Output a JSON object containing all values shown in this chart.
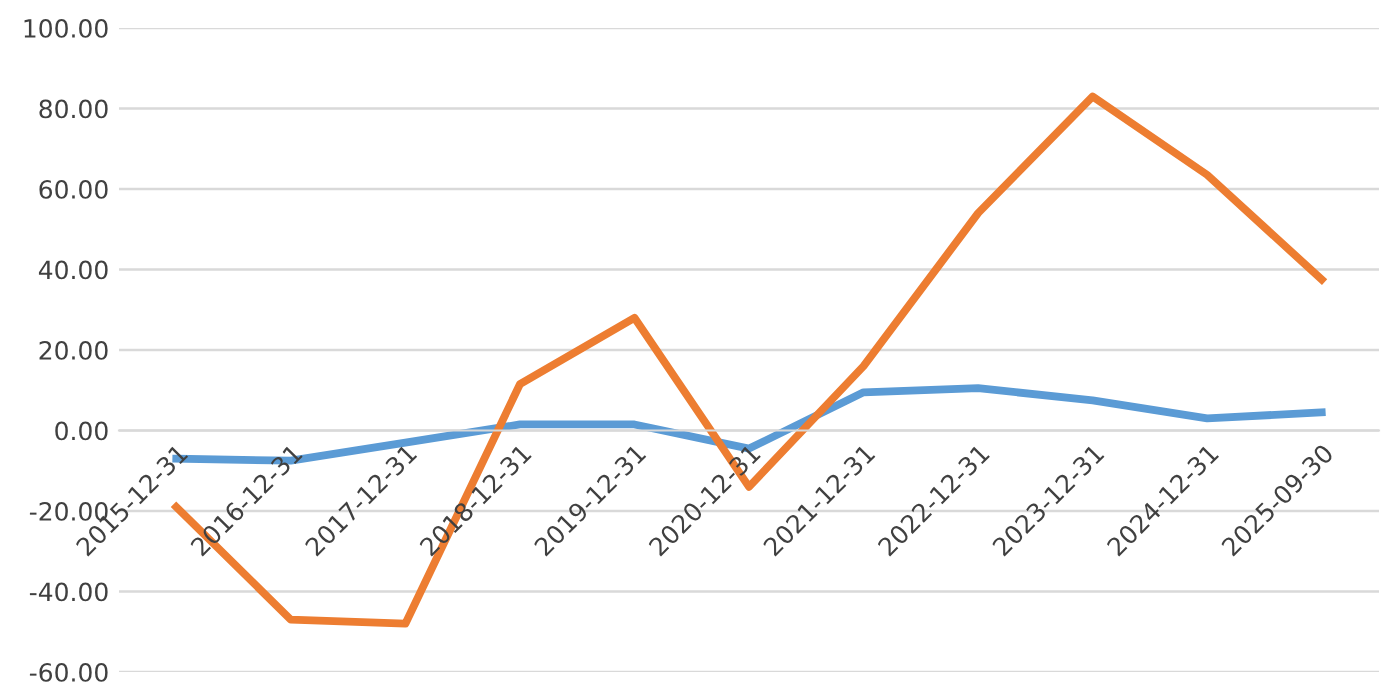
{
  "chart_data": {
    "type": "line",
    "categories": [
      "2015-12-31",
      "2016-12-31",
      "2017-12-31",
      "2018-12-31",
      "2019-12-31",
      "2020-12-31",
      "2021-12-31",
      "2022-12-31",
      "2023-12-31",
      "2024-12-31",
      "2025-09-30"
    ],
    "series": [
      {
        "color": "#5b9bd5",
        "values": [
          -7,
          -7.5,
          -3,
          1.5,
          1.5,
          -4.5,
          9.5,
          10.5,
          7.5,
          3,
          4.5
        ]
      },
      {
        "color": "#ed7d31",
        "values": [
          -19,
          -47,
          -48,
          11.5,
          28,
          -14,
          16,
          54,
          83,
          63.5,
          37.5
        ]
      }
    ],
    "ylim": [
      -60,
      100
    ],
    "yticks": [
      {
        "value": -60,
        "label": "-60.00"
      },
      {
        "value": -40,
        "label": "-40.00"
      },
      {
        "value": -20,
        "label": "-20.00"
      },
      {
        "value": 0,
        "label": "0.00"
      },
      {
        "value": 20,
        "label": "20.00"
      },
      {
        "value": 40,
        "label": "40.00"
      },
      {
        "value": 60,
        "label": "60.00"
      },
      {
        "value": 80,
        "label": "80.00"
      },
      {
        "value": 100,
        "label": "100.00"
      }
    ],
    "grid": "y",
    "marker": "none",
    "line_style": "solid"
  }
}
